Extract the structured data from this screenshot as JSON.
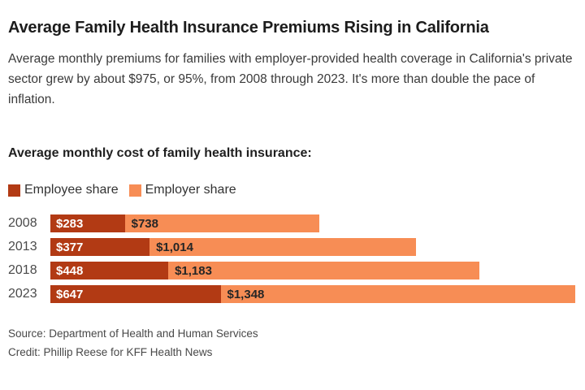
{
  "header": {
    "title": "Average Family Health Insurance Premiums Rising in California",
    "subtitle": "Average monthly premiums for families with employer-provided health coverage in California's private sector grew by about $975, or 95%, from 2008 through 2023. It's more than double the pace of inflation."
  },
  "section_heading": "Average monthly cost of family health insurance:",
  "legend": {
    "items": [
      {
        "label": "Employee share",
        "color": "#b23a14"
      },
      {
        "label": "Employer share",
        "color": "#f78d55"
      }
    ]
  },
  "chart_data": {
    "type": "bar",
    "orientation": "horizontal",
    "stacked": true,
    "title": "Average monthly cost of family health insurance:",
    "categories": [
      "2008",
      "2013",
      "2018",
      "2023"
    ],
    "series": [
      {
        "name": "Employee share",
        "color": "#b23a14",
        "values": [
          283,
          377,
          448,
          647
        ]
      },
      {
        "name": "Employer share",
        "color": "#f78d55",
        "values": [
          738,
          1014,
          1183,
          1348
        ]
      }
    ],
    "totals": [
      1021,
      1391,
      1631,
      1995
    ],
    "xmax": 1995,
    "value_labels": {
      "employee": [
        "$283",
        "$377",
        "$448",
        "$647"
      ],
      "employer": [
        "$738",
        "$1,014",
        "$1,183",
        "$1,348"
      ]
    },
    "xlabel": "",
    "ylabel": "",
    "grid": false,
    "legend_position": "top-left"
  },
  "footer": {
    "source": "Source: Department of Health and Human Services",
    "credit": "Credit: Phillip Reese for KFF Health News"
  }
}
